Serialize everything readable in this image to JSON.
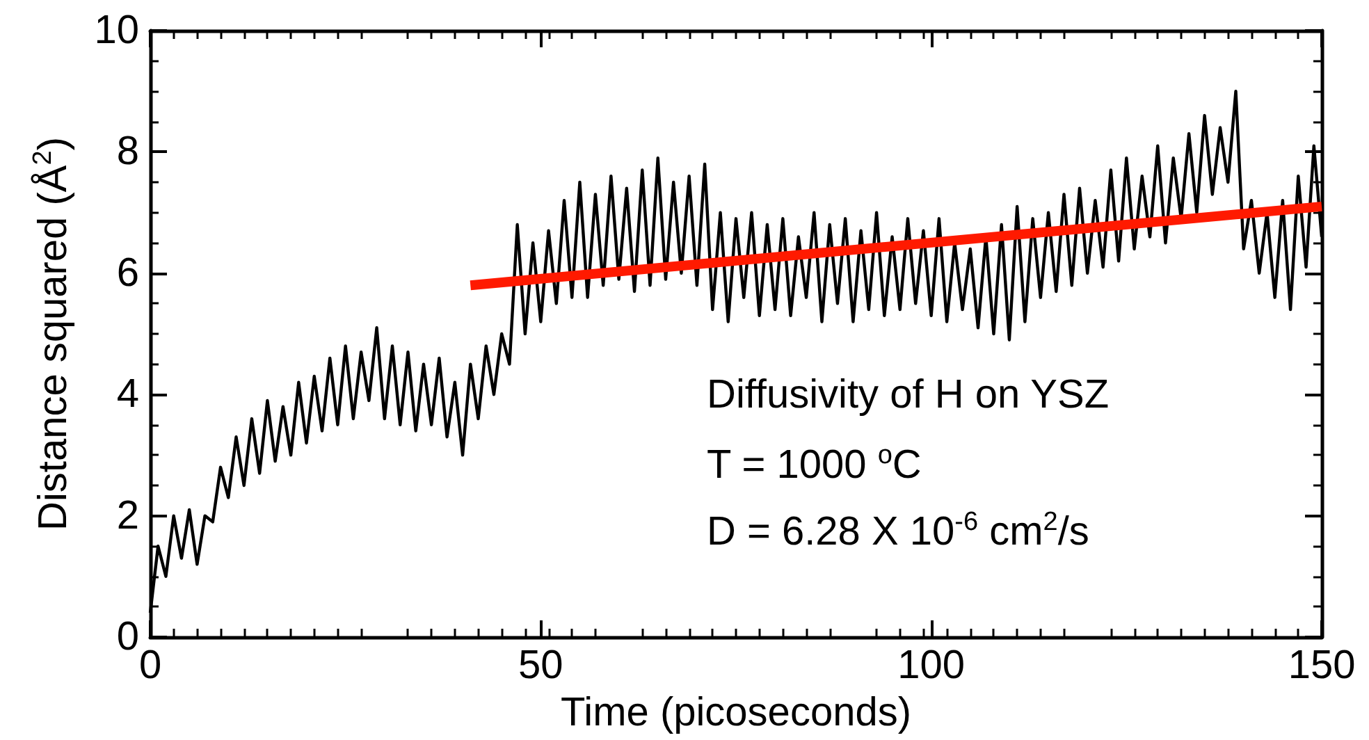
{
  "chart_data": {
    "type": "line",
    "xlabel": "Time (picoseconds)",
    "ylabel": "Distance squared (Å$^{2}$)",
    "annotations": [
      "Diffusivity of H on YSZ",
      "T = 1000 $^{o}$C",
      "D = 6.28 X 10$^{-6}$ cm$^{2}$/s"
    ],
    "xlim": [
      0,
      150
    ],
    "xticks": [
      0,
      50,
      100,
      150
    ],
    "ylim": [
      0,
      10
    ],
    "yticks": [
      0,
      2,
      4,
      6,
      8,
      10
    ],
    "grid": false,
    "marker": "none",
    "line_style": "solid",
    "series": [
      {
        "color": "#000000",
        "x": [
          0,
          1,
          2,
          3,
          4,
          5,
          6,
          7,
          8,
          9,
          10,
          11,
          12,
          13,
          14,
          15,
          16,
          17,
          18,
          19,
          20,
          21,
          22,
          23,
          24,
          25,
          26,
          27,
          28,
          29,
          30,
          31,
          32,
          33,
          34,
          35,
          36,
          37,
          38,
          39,
          40,
          41,
          42,
          43,
          44,
          45,
          46,
          47,
          48,
          49,
          50,
          51,
          52,
          53,
          54,
          55,
          56,
          57,
          58,
          59,
          60,
          61,
          62,
          63,
          64,
          65,
          66,
          67,
          68,
          69,
          70,
          71,
          72,
          73,
          74,
          75,
          76,
          77,
          78,
          79,
          80,
          81,
          82,
          83,
          84,
          85,
          86,
          87,
          88,
          89,
          90,
          91,
          92,
          93,
          94,
          95,
          96,
          97,
          98,
          99,
          100,
          101,
          102,
          103,
          104,
          105,
          106,
          107,
          108,
          109,
          110,
          111,
          112,
          113,
          114,
          115,
          116,
          117,
          118,
          119,
          120,
          121,
          122,
          123,
          124,
          125,
          126,
          127,
          128,
          129,
          130,
          131,
          132,
          133,
          134,
          135,
          136,
          137,
          138,
          139,
          140,
          141,
          142,
          143,
          144,
          145,
          146,
          147,
          148,
          149,
          150
        ],
        "values": [
          0.4,
          1.5,
          1.0,
          2.0,
          1.3,
          2.1,
          1.2,
          2.0,
          1.9,
          2.8,
          2.3,
          3.3,
          2.5,
          3.6,
          2.7,
          3.9,
          2.9,
          3.8,
          3.0,
          4.2,
          3.2,
          4.3,
          3.4,
          4.6,
          3.5,
          4.8,
          3.6,
          4.7,
          3.9,
          5.1,
          3.6,
          4.8,
          3.5,
          4.7,
          3.4,
          4.5,
          3.5,
          4.6,
          3.3,
          4.2,
          3.0,
          4.5,
          3.6,
          4.8,
          4.0,
          5.0,
          4.5,
          6.8,
          5.0,
          6.5,
          5.2,
          6.7,
          5.5,
          7.2,
          5.6,
          7.5,
          5.6,
          7.3,
          5.8,
          7.6,
          5.9,
          7.4,
          5.7,
          7.7,
          5.8,
          7.9,
          5.9,
          7.5,
          6.0,
          7.6,
          5.8,
          7.8,
          5.4,
          7.0,
          5.2,
          6.9,
          5.6,
          7.0,
          5.3,
          6.8,
          5.4,
          6.9,
          5.3,
          6.6,
          5.6,
          7.0,
          5.2,
          6.8,
          5.5,
          6.9,
          5.2,
          6.7,
          5.4,
          7.0,
          5.3,
          6.6,
          5.4,
          6.9,
          5.5,
          6.7,
          5.3,
          6.9,
          5.2,
          6.5,
          5.4,
          6.4,
          5.1,
          6.6,
          5.0,
          6.8,
          4.9,
          7.1,
          5.2,
          6.9,
          5.6,
          7.0,
          5.7,
          7.3,
          5.8,
          7.4,
          6.0,
          7.2,
          6.1,
          7.7,
          6.2,
          7.9,
          6.4,
          7.6,
          6.6,
          8.1,
          6.5,
          7.9,
          6.9,
          8.3,
          7.0,
          8.6,
          7.3,
          8.4,
          7.5,
          9.0,
          6.4,
          7.2,
          6.0,
          7.0,
          5.6,
          7.2,
          5.4,
          7.6,
          6.1,
          8.1,
          6.6
        ]
      },
      {
        "color": "#ff1a00",
        "x": [
          41,
          150
        ],
        "values": [
          5.8,
          7.1
        ]
      }
    ]
  }
}
